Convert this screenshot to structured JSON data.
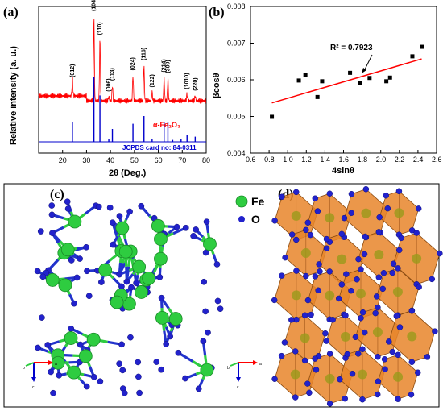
{
  "chart_data": [
    {
      "panel": "(a)",
      "type": "line",
      "xlabel": "2θ (Deg.)",
      "ylabel": "Relative intensity (a. u.)",
      "xlim": [
        10,
        80
      ],
      "xticks": [
        "20",
        "30",
        "40",
        "50",
        "60",
        "70",
        "80"
      ],
      "series": [
        {
          "name": "α-Fe2O3",
          "color": "#ff0000",
          "x": [
            24.1,
            33.1,
            35.6,
            39.3,
            40.8,
            49.4,
            54.0,
            57.4,
            62.4,
            64.0,
            72.0,
            75.4
          ],
          "y": [
            0.22,
            1.0,
            0.72,
            0.05,
            0.18,
            0.3,
            0.42,
            0.1,
            0.28,
            0.27,
            0.08,
            0.06
          ]
        },
        {
          "name": "JCPDS card no: 84-0311",
          "color": "#0000cc",
          "x": [
            24.1,
            33.1,
            35.6,
            39.3,
            40.8,
            49.4,
            54.0,
            57.4,
            62.4,
            64.0,
            66.0,
            69.5,
            72.0,
            75.4
          ],
          "y": [
            0.3,
            1.0,
            0.72,
            0.05,
            0.2,
            0.28,
            0.4,
            0.05,
            0.3,
            0.3,
            0.03,
            0.04,
            0.1,
            0.08
          ]
        }
      ],
      "peak_labels": [
        {
          "x": 24.1,
          "text": "(012)"
        },
        {
          "x": 33.1,
          "text": "(104)"
        },
        {
          "x": 35.6,
          "text": "(110)"
        },
        {
          "x": 39.3,
          "text": "(006)"
        },
        {
          "x": 40.8,
          "text": "(113)"
        },
        {
          "x": 49.4,
          "text": "(024)"
        },
        {
          "x": 54.0,
          "text": "(116)"
        },
        {
          "x": 57.4,
          "text": "(122)"
        },
        {
          "x": 62.4,
          "text": "(214)"
        },
        {
          "x": 64.0,
          "text": "(300)"
        },
        {
          "x": 72.0,
          "text": "(1010)"
        },
        {
          "x": 75.4,
          "text": "(220)"
        }
      ]
    },
    {
      "panel": "(b)",
      "type": "scatter",
      "xlabel": "4sinθ",
      "ylabel": "βcosθ",
      "xlim": [
        0.6,
        2.6
      ],
      "ylim": [
        0.004,
        0.008
      ],
      "xticks": [
        "0.6",
        "0.8",
        "1.0",
        "1.2",
        "1.4",
        "1.6",
        "1.8",
        "2.0",
        "2.2",
        "2.4",
        "2.6"
      ],
      "yticks": [
        "0.004",
        "0.005",
        "0.006",
        "0.007",
        "0.008"
      ],
      "points": {
        "x": [
          0.83,
          1.12,
          1.19,
          1.32,
          1.37,
          1.67,
          1.78,
          1.88,
          2.06,
          2.1,
          2.34,
          2.44
        ],
        "y": [
          0.00499,
          0.00598,
          0.00613,
          0.00553,
          0.00596,
          0.00619,
          0.00592,
          0.00605,
          0.00596,
          0.00606,
          0.00664,
          0.0069
        ]
      },
      "fit": {
        "x": [
          0.83,
          2.44
        ],
        "y": [
          0.00537,
          0.00657
        ],
        "color": "#ff0000"
      },
      "annotation": "R² = 0.7923"
    }
  ],
  "panels": {
    "a_label": "(a)",
    "a_series_label": "α-Fe₂O₃",
    "a_jcpds_label": "JCPDS card no: 84-0311",
    "b_label": "(b)",
    "b_annotation": "R² = 0.7923",
    "c_label": "(c)",
    "d_label": "(d)",
    "legend_fe": "Fe",
    "legend_o": "O",
    "axes_c_a": "a",
    "axes_c_b": "b",
    "axes_c_c": "c",
    "axes_d_a": "a",
    "axes_d_b": "b",
    "axes_d_c": "c"
  },
  "colors": {
    "fe": "#2ecc40",
    "o": "#2222cc",
    "octahedron": "#e8852a",
    "xrd": "#ff0000",
    "ref": "#0000cc",
    "fit": "#ff0000"
  }
}
